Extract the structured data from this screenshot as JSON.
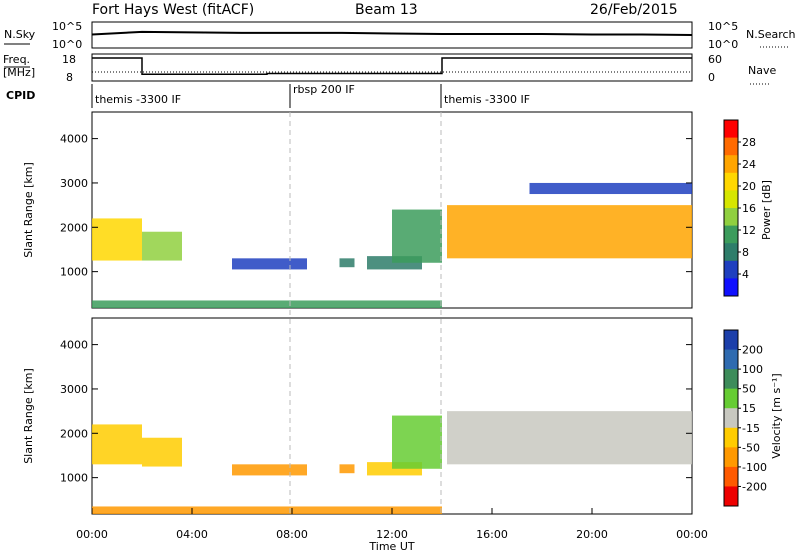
{
  "header": {
    "station": "Fort Hays West (fitACF)",
    "beam": "Beam 13",
    "date": "26/Feb/2015"
  },
  "noise_panel": {
    "left_label": "N.Sky",
    "right_label": "N.Search",
    "left_ticks": [
      "10^5",
      "10^0"
    ],
    "right_ticks": [
      "10^5",
      "10^0"
    ]
  },
  "freq_panel": {
    "left_label_line1": "Freq.",
    "left_label_line2": "[MHz]",
    "left_ticks": [
      "18",
      "8"
    ],
    "right_label": "Nave",
    "right_ticks": [
      "60",
      "0"
    ]
  },
  "cpid_panel": {
    "label": "CPID",
    "segments": [
      "themis -3300 IF",
      "rbsp 200 IF",
      "themis -3300 IF"
    ]
  },
  "power_panel": {
    "ylabel": "Slant Range [km]",
    "yticks": [
      "1000",
      "2000",
      "3000",
      "4000"
    ],
    "colorbar_label": "Power [dB]",
    "colorbar_ticks": [
      "28",
      "24",
      "20",
      "16",
      "12",
      "8",
      "4"
    ],
    "colorbar_colors": [
      "#ff0000",
      "#ff6a00",
      "#ffa500",
      "#ffd700",
      "#d6e600",
      "#90d040",
      "#3c9c5c",
      "#2e7d6a",
      "#1f3fbf",
      "#1010ff"
    ]
  },
  "velocity_panel": {
    "ylabel": "Slant Range [km]",
    "yticks": [
      "1000",
      "2000",
      "3000",
      "4000"
    ],
    "colorbar_label": "Velocity [m s⁻¹]",
    "colorbar_ticks": [
      "200",
      "100",
      "50",
      "15",
      "-15",
      "-50",
      "-100",
      "-200"
    ],
    "colorbar_colors": [
      "#1c3faa",
      "#2f6bb0",
      "#3d8c5a",
      "#66cc33",
      "#c8c8c0",
      "#ffcc00",
      "#ff9900",
      "#ff5a00",
      "#ee0000"
    ]
  },
  "xaxis": {
    "ticks": [
      "00:00",
      "04:00",
      "08:00",
      "12:00",
      "16:00",
      "20:00",
      "00:00"
    ],
    "label": "Time UT"
  },
  "chart_data": [
    {
      "type": "line",
      "panel": "noise",
      "x_unit": "hours UT",
      "series": [
        {
          "name": "N.Sky",
          "x": [
            0,
            2,
            4,
            6,
            8,
            10,
            12,
            14,
            16,
            18,
            20,
            22,
            24
          ],
          "values": [
            2.6,
            3.1,
            3.0,
            2.9,
            2.9,
            2.9,
            2.8,
            2.7,
            2.7,
            2.7,
            2.6,
            2.6,
            2.5
          ]
        }
      ],
      "ylim": [
        0,
        5
      ]
    },
    {
      "type": "line",
      "panel": "frequency",
      "x_unit": "hours UT",
      "series": [
        {
          "name": "Freq.",
          "x": [
            0,
            2,
            2,
            7,
            7,
            14,
            14,
            24
          ],
          "values": [
            16.5,
            16.5,
            10.5,
            10.5,
            10.8,
            10.8,
            16.5,
            16.5
          ]
        }
      ],
      "ylim": [
        8,
        18
      ]
    },
    {
      "type": "heatmap",
      "panel": "power",
      "x_unit": "hours UT",
      "y_unit": "km",
      "xlim": [
        0,
        24
      ],
      "ylim": [
        180,
        4600
      ],
      "cells": [
        {
          "x": [
            0,
            2
          ],
          "y": [
            1250,
            2200
          ],
          "level": 6
        },
        {
          "x": [
            2.0,
            3.6
          ],
          "y": [
            1250,
            1900
          ],
          "level": 4
        },
        {
          "x": [
            5.6,
            8.6
          ],
          "y": [
            1050,
            1300
          ],
          "level": 1
        },
        {
          "x": [
            9.9,
            10.5
          ],
          "y": [
            1100,
            1300
          ],
          "level": 2
        },
        {
          "x": [
            11.0,
            13.2
          ],
          "y": [
            1050,
            1350
          ],
          "level": 2
        },
        {
          "x": [
            12.0,
            14.0
          ],
          "y": [
            1200,
            2400
          ],
          "level": 3
        },
        {
          "x": [
            14.2,
            24.0
          ],
          "y": [
            1300,
            2500
          ],
          "level": 7
        },
        {
          "x": [
            17.5,
            24.0
          ],
          "y": [
            2750,
            3000
          ],
          "level": 1
        },
        {
          "x": [
            0,
            14.0
          ],
          "y": [
            180,
            350
          ],
          "level": 3
        }
      ]
    },
    {
      "type": "heatmap",
      "panel": "velocity",
      "x_unit": "hours UT",
      "y_unit": "km",
      "xlim": [
        0,
        24
      ],
      "ylim": [
        180,
        4600
      ],
      "cells": [
        {
          "x": [
            0,
            2
          ],
          "y": [
            1300,
            2200
          ],
          "vel": -15
        },
        {
          "x": [
            2.0,
            3.6
          ],
          "y": [
            1250,
            1900
          ],
          "vel": -40
        },
        {
          "x": [
            5.6,
            8.6
          ],
          "y": [
            1050,
            1300
          ],
          "vel": -60
        },
        {
          "x": [
            9.9,
            10.5
          ],
          "y": [
            1100,
            1300
          ],
          "vel": -60
        },
        {
          "x": [
            11.0,
            13.2
          ],
          "y": [
            1050,
            1350
          ],
          "vel": -40
        },
        {
          "x": [
            12.0,
            14.0
          ],
          "y": [
            1200,
            2400
          ],
          "vel": 40
        },
        {
          "x": [
            14.2,
            24.0
          ],
          "y": [
            1300,
            2500
          ],
          "vel": 0
        },
        {
          "x": [
            0,
            14.0
          ],
          "y": [
            180,
            350
          ],
          "vel": -60
        }
      ]
    }
  ]
}
